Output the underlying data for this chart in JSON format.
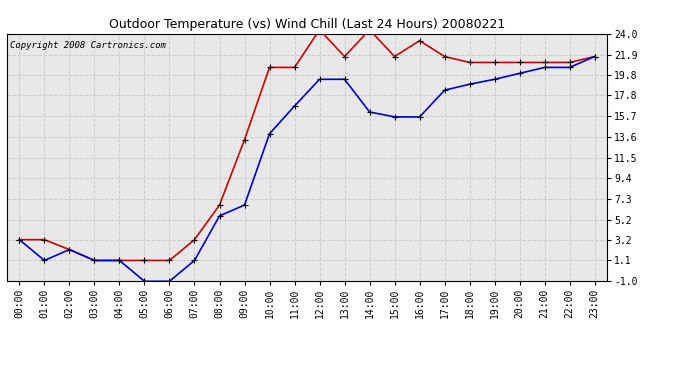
{
  "title": "Outdoor Temperature (vs) Wind Chill (Last 24 Hours) 20080221",
  "copyright": "Copyright 2008 Cartronics.com",
  "hours": [
    "00:00",
    "01:00",
    "02:00",
    "03:00",
    "04:00",
    "05:00",
    "06:00",
    "07:00",
    "08:00",
    "09:00",
    "10:00",
    "11:00",
    "12:00",
    "13:00",
    "14:00",
    "15:00",
    "16:00",
    "17:00",
    "18:00",
    "19:00",
    "20:00",
    "21:00",
    "22:00",
    "23:00"
  ],
  "temp": [
    3.2,
    3.2,
    2.2,
    1.1,
    1.1,
    1.1,
    1.1,
    3.2,
    6.7,
    13.3,
    20.6,
    20.6,
    24.4,
    21.7,
    24.4,
    21.7,
    23.3,
    21.7,
    21.1,
    21.1,
    21.1,
    21.1,
    21.1,
    21.7
  ],
  "windchill": [
    3.2,
    1.1,
    2.2,
    1.1,
    1.1,
    -1.0,
    -1.0,
    1.1,
    5.6,
    6.7,
    13.9,
    16.7,
    19.4,
    19.4,
    16.1,
    15.6,
    15.6,
    18.3,
    18.9,
    19.4,
    20.0,
    20.6,
    20.6,
    21.7
  ],
  "temp_color": "#cc0000",
  "windchill_color": "#0000cc",
  "bg_color": "#ffffff",
  "plot_bg_color": "#e8e8e8",
  "grid_color": "#cccccc",
  "ylim": [
    -1.0,
    24.0
  ],
  "yticks": [
    -1.0,
    1.1,
    3.2,
    5.2,
    7.3,
    9.4,
    11.5,
    13.6,
    15.7,
    17.8,
    19.8,
    21.9,
    24.0
  ],
  "title_fontsize": 9,
  "tick_fontsize": 7,
  "copyright_fontsize": 6.5
}
